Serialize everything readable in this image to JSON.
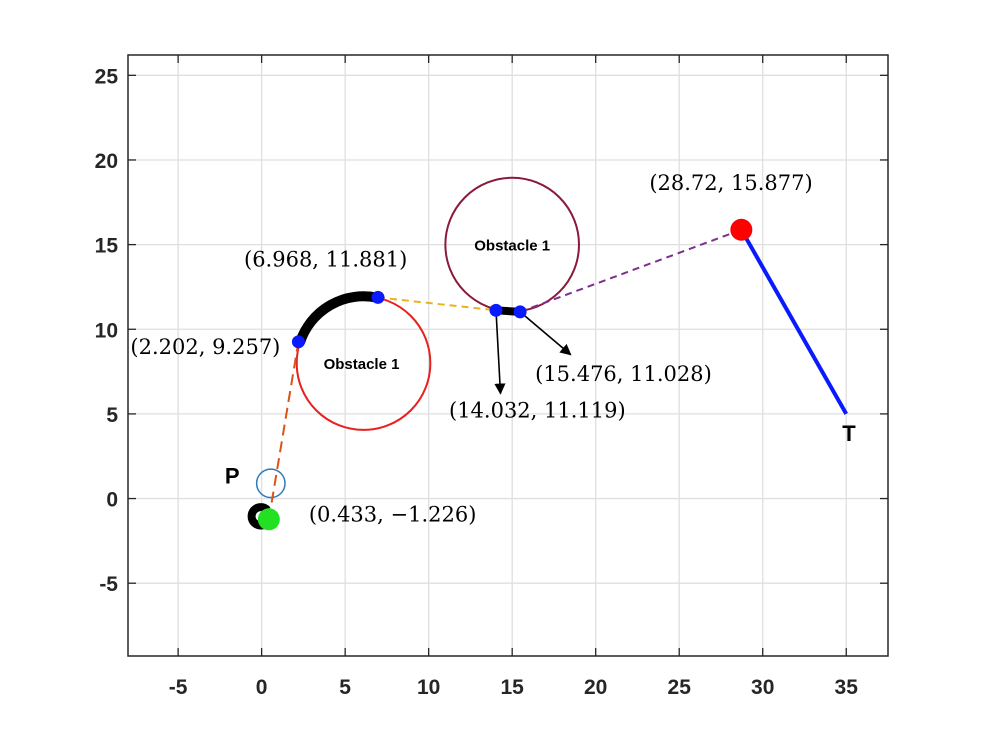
{
  "chart_data": {
    "type": "scatter",
    "xlim": [
      -8,
      37.5
    ],
    "ylim": [
      -9.3,
      26.2
    ],
    "x_ticks": [
      -5,
      0,
      5,
      10,
      15,
      20,
      25,
      30,
      35
    ],
    "y_ticks": [
      -5,
      0,
      5,
      10,
      15,
      20,
      25
    ],
    "x_tick_labels": [
      "-5",
      "0",
      "5",
      "10",
      "15",
      "20",
      "25",
      "30",
      "35"
    ],
    "y_tick_labels": [
      "-5",
      "0",
      "5",
      "10",
      "15",
      "20",
      "25"
    ],
    "grid": true,
    "obstacles": [
      {
        "label": "Obstacle 1",
        "center": [
          6.1,
          8.0
        ],
        "radius": 4.0,
        "color": "#e8211e"
      },
      {
        "label": "Obstacle 1",
        "center": [
          15.0,
          15.0
        ],
        "radius": 4.0,
        "color": "#8b1a3a"
      }
    ],
    "pursuer": {
      "label": "P",
      "center": [
        0.55,
        0.9
      ],
      "radius": 0.85,
      "color": "#2f7ab8"
    },
    "target": {
      "label": "T",
      "segment": [
        [
          28.72,
          15.877
        ],
        [
          35.0,
          5.0
        ]
      ],
      "color": "#0a1aff"
    },
    "start_point": {
      "x": 0.433,
      "y": -1.226,
      "label": "(0.433, −1.226)",
      "color": "#22e022"
    },
    "end_point": {
      "x": 28.72,
      "y": 15.877,
      "label": "(28.72, 15.877)",
      "color": "#ff0000"
    },
    "waypoints": [
      {
        "x": 2.202,
        "y": 9.257,
        "label": "(2.202, 9.257)"
      },
      {
        "x": 6.968,
        "y": 11.881,
        "label": "(6.968, 11.881)"
      },
      {
        "x": 14.032,
        "y": 11.119,
        "label": "(14.032, 11.119)"
      },
      {
        "x": 15.476,
        "y": 11.028,
        "label": "(15.476, 11.028)"
      }
    ],
    "waypoint_color": "#0a1aff",
    "dashed_segments": [
      {
        "from": [
          0.433,
          -1.226
        ],
        "to": [
          2.202,
          9.257
        ],
        "color": "#d95319"
      },
      {
        "from": [
          6.968,
          11.881
        ],
        "to": [
          14.032,
          11.119
        ],
        "color": "#edb120"
      },
      {
        "from": [
          15.476,
          11.028
        ],
        "to": [
          28.72,
          15.877
        ],
        "color": "#7e2f8e"
      }
    ],
    "arrows": [
      {
        "from": [
          14.032,
          11.119
        ],
        "to": [
          14.3,
          6.2
        ]
      },
      {
        "from": [
          15.476,
          11.028
        ],
        "to": [
          18.5,
          8.5
        ]
      }
    ]
  }
}
